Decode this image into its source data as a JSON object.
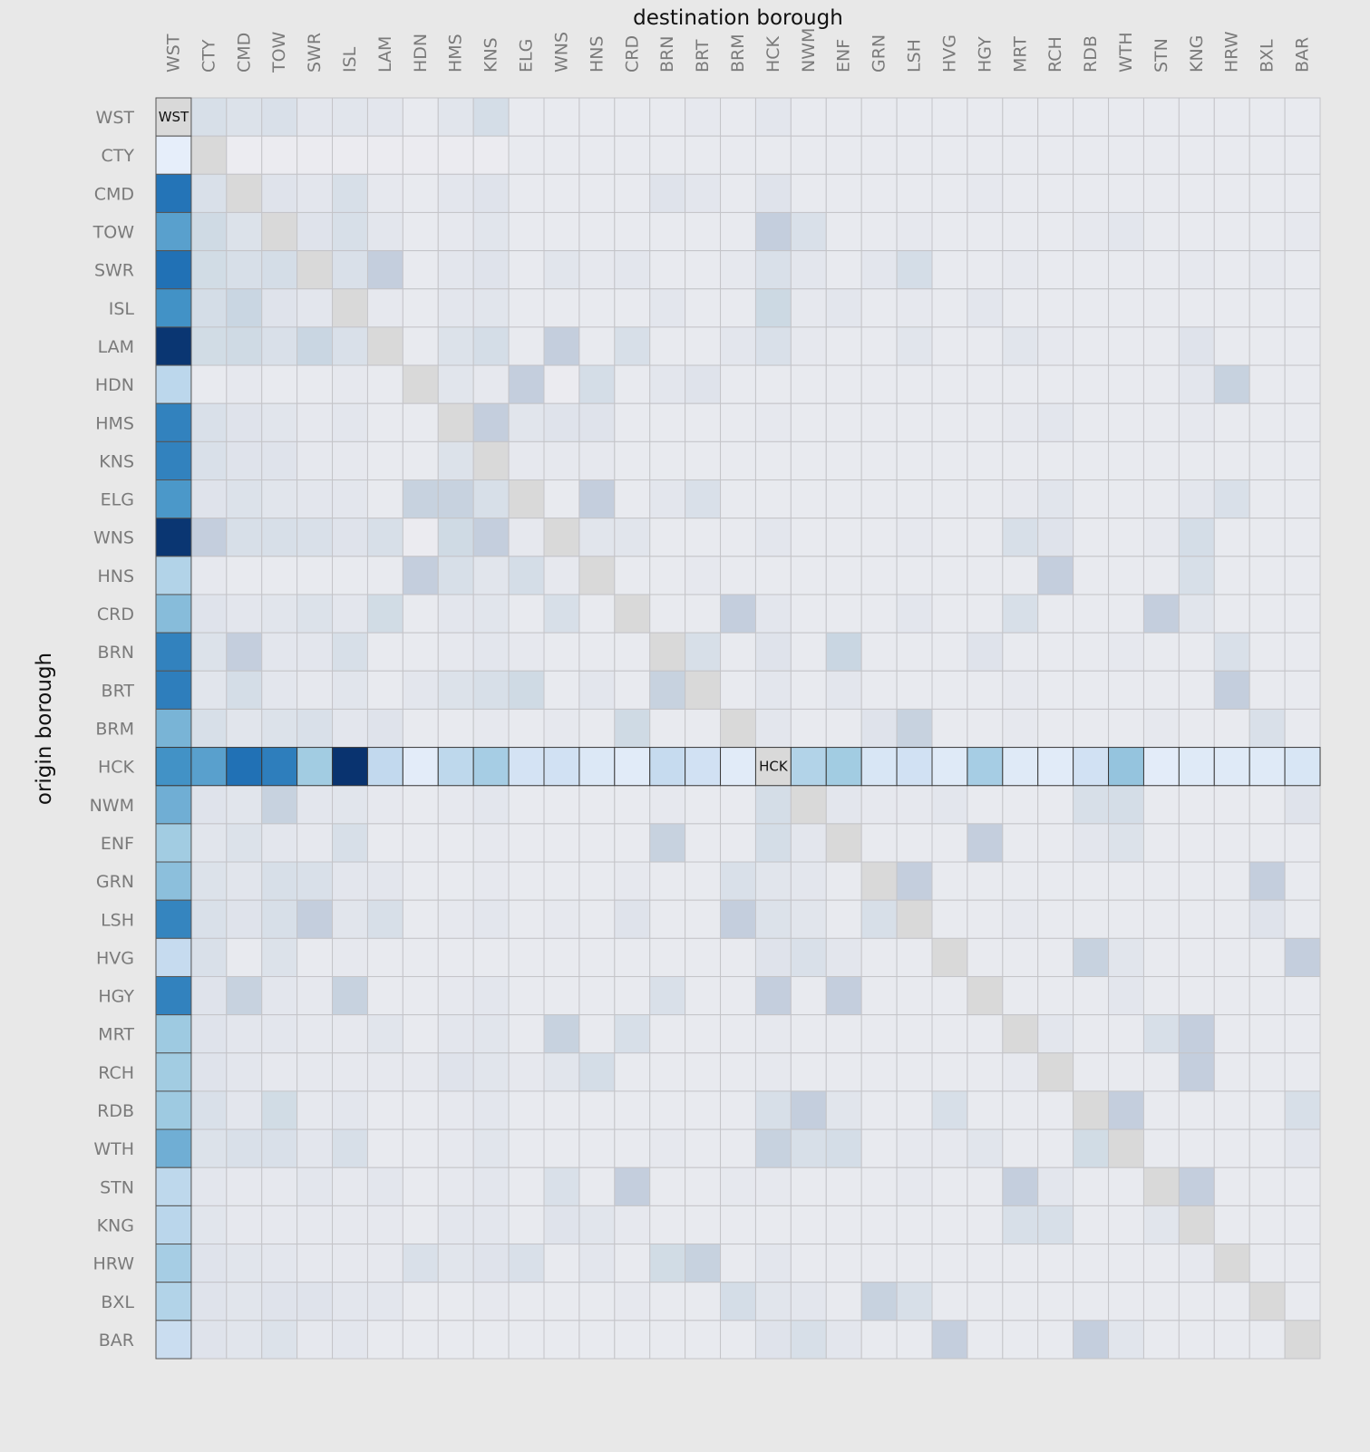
{
  "chart_data": {
    "type": "heatmap",
    "title": "",
    "xlabel": "destination borough",
    "ylabel": "origin borough",
    "x_categories": [
      "WST",
      "CTY",
      "CMD",
      "TOW",
      "SWR",
      "ISL",
      "LAM",
      "HDN",
      "HMS",
      "KNS",
      "ELG",
      "WNS",
      "HNS",
      "CRD",
      "BRN",
      "BRT",
      "BRM",
      "HCK",
      "NWM",
      "ENF",
      "GRN",
      "LSH",
      "HVG",
      "HGY",
      "MRT",
      "RCH",
      "RDB",
      "WTH",
      "STN",
      "KNG",
      "HRW",
      "BXL",
      "BAR"
    ],
    "y_categories": [
      "WST",
      "CTY",
      "CMD",
      "TOW",
      "SWR",
      "ISL",
      "LAM",
      "HDN",
      "HMS",
      "KNS",
      "ELG",
      "WNS",
      "HNS",
      "CRD",
      "BRN",
      "BRT",
      "BRM",
      "HCK",
      "NWM",
      "ENF",
      "GRN",
      "LSH",
      "HVG",
      "HGY",
      "MRT",
      "RCH",
      "RDB",
      "WTH",
      "STN",
      "KNG",
      "HRW",
      "BXL",
      "BAR"
    ],
    "scales": {
      "highlight": {
        "stops": [
          "#eaf0fb",
          "#c6dbef",
          "#9ecae1",
          "#4292c6",
          "#2171b5",
          "#08306b"
        ]
      },
      "background": {
        "stops": [
          "#ededf1",
          "#dde2ea",
          "#cbd8e3",
          "#b9bfd4"
        ]
      }
    },
    "highlighted_rows": [
      "HCK"
    ],
    "highlighted_columns": [
      "WST"
    ],
    "diagonal_color": "#d9d9d9",
    "grid": true,
    "legend": "none",
    "highlight_series": [
      {
        "name": "WST",
        "orientation": "column",
        "values": [
          null,
          0.02,
          0.78,
          0.55,
          0.8,
          0.6,
          0.98,
          0.25,
          0.7,
          0.7,
          0.58,
          0.98,
          0.3,
          0.45,
          0.7,
          0.72,
          0.48,
          0.6,
          0.5,
          0.38,
          0.44,
          0.68,
          0.2,
          0.7,
          0.4,
          0.38,
          0.4,
          0.5,
          0.24,
          0.26,
          0.36,
          0.3,
          0.18
        ]
      },
      {
        "name": "HCK",
        "orientation": "row",
        "values": [
          0.6,
          0.55,
          0.8,
          0.72,
          0.38,
          0.99,
          0.22,
          0.04,
          0.24,
          0.36,
          0.12,
          0.14,
          0.08,
          0.05,
          0.2,
          0.14,
          0.05,
          null,
          0.3,
          0.38,
          0.1,
          0.14,
          0.06,
          0.36,
          0.06,
          0.05,
          0.14,
          0.42,
          0.04,
          0.06,
          0.06,
          0.06,
          0.1
        ]
      }
    ],
    "background_rows": [
      [
        null,
        0.45,
        0.35,
        0.4,
        0.2,
        0.25,
        0.2,
        0.1,
        0.25,
        0.5,
        0.1,
        0.1,
        0.1,
        0.1,
        0.1,
        0.15,
        0.1,
        0.2,
        0.1,
        0.1,
        0.1,
        0.1,
        0.1,
        0.1,
        0.1,
        0.1,
        0.1,
        0.1,
        0.1,
        0.1,
        0.1,
        0.1,
        0.1
      ],
      [
        0.02,
        0.05,
        0.02,
        0.05,
        0.05,
        0.05,
        0.05,
        0.05,
        0.05,
        0.05,
        0.1,
        0.1,
        0.1,
        0.1,
        0.1,
        0.1,
        0.1,
        0.1,
        0.1,
        0.1,
        0.1,
        0.1,
        0.1,
        0.1,
        0.1,
        0.1,
        0.1,
        0.1,
        0.1,
        0.1,
        0.1,
        0.1,
        0.1
      ],
      [
        0.78,
        0.4,
        0.0,
        0.3,
        0.2,
        0.45,
        0.15,
        0.1,
        0.2,
        0.3,
        0.1,
        0.1,
        0.1,
        0.1,
        0.3,
        0.2,
        0.1,
        0.3,
        0.1,
        0.1,
        0.1,
        0.1,
        0.1,
        0.15,
        0.1,
        0.1,
        0.1,
        0.1,
        0.1,
        0.1,
        0.1,
        0.1,
        0.1
      ],
      [
        0.55,
        0.6,
        0.35,
        0.0,
        0.3,
        0.45,
        0.2,
        0.1,
        0.15,
        0.25,
        0.1,
        0.1,
        0.1,
        0.1,
        0.1,
        0.1,
        0.1,
        0.8,
        0.4,
        0.1,
        0.1,
        0.15,
        0.1,
        0.1,
        0.1,
        0.1,
        0.15,
        0.2,
        0.1,
        0.1,
        0.1,
        0.1,
        0.15
      ],
      [
        0.8,
        0.55,
        0.45,
        0.5,
        0.0,
        0.4,
        0.8,
        0.1,
        0.2,
        0.3,
        0.1,
        0.25,
        0.15,
        0.2,
        0.1,
        0.1,
        0.15,
        0.4,
        0.2,
        0.1,
        0.2,
        0.5,
        0.1,
        0.1,
        0.15,
        0.1,
        0.1,
        0.1,
        0.1,
        0.15,
        0.1,
        0.15,
        0.1
      ],
      [
        0.6,
        0.5,
        0.7,
        0.3,
        0.2,
        0.0,
        0.15,
        0.1,
        0.2,
        0.25,
        0.1,
        0.1,
        0.1,
        0.1,
        0.2,
        0.1,
        0.1,
        0.65,
        0.15,
        0.2,
        0.1,
        0.15,
        0.1,
        0.2,
        0.1,
        0.1,
        0.1,
        0.1,
        0.1,
        0.1,
        0.1,
        0.1,
        0.1
      ],
      [
        0.98,
        0.55,
        0.6,
        0.4,
        0.7,
        0.4,
        0.0,
        0.1,
        0.35,
        0.5,
        0.1,
        0.8,
        0.1,
        0.45,
        0.1,
        0.1,
        0.2,
        0.4,
        0.15,
        0.1,
        0.1,
        0.25,
        0.1,
        0.1,
        0.25,
        0.15,
        0.1,
        0.1,
        0.1,
        0.3,
        0.1,
        0.1,
        0.1
      ],
      [
        0.25,
        0.1,
        0.15,
        0.1,
        0.1,
        0.15,
        0.1,
        0.0,
        0.25,
        0.15,
        0.8,
        0.05,
        0.5,
        0.1,
        0.2,
        0.3,
        0.1,
        0.1,
        0.1,
        0.1,
        0.1,
        0.1,
        0.1,
        0.1,
        0.1,
        0.1,
        0.1,
        0.1,
        0.1,
        0.2,
        0.75,
        0.1,
        0.1
      ],
      [
        0.7,
        0.4,
        0.3,
        0.25,
        0.15,
        0.2,
        0.1,
        0.1,
        0.0,
        0.8,
        0.25,
        0.3,
        0.3,
        0.1,
        0.1,
        0.1,
        0.1,
        0.15,
        0.1,
        0.1,
        0.1,
        0.1,
        0.1,
        0.1,
        0.15,
        0.2,
        0.1,
        0.1,
        0.1,
        0.15,
        0.1,
        0.1,
        0.1
      ],
      [
        0.7,
        0.4,
        0.3,
        0.3,
        0.15,
        0.15,
        0.1,
        0.1,
        0.35,
        0.0,
        0.15,
        0.15,
        0.15,
        0.1,
        0.1,
        0.1,
        0.1,
        0.1,
        0.1,
        0.1,
        0.1,
        0.1,
        0.1,
        0.1,
        0.1,
        0.1,
        0.1,
        0.1,
        0.1,
        0.1,
        0.1,
        0.1,
        0.1
      ],
      [
        0.58,
        0.3,
        0.35,
        0.25,
        0.2,
        0.2,
        0.1,
        0.75,
        0.75,
        0.45,
        0.0,
        0.1,
        0.8,
        0.1,
        0.2,
        0.4,
        0.1,
        0.1,
        0.1,
        0.1,
        0.1,
        0.1,
        0.1,
        0.1,
        0.15,
        0.25,
        0.1,
        0.1,
        0.1,
        0.2,
        0.4,
        0.1,
        0.1
      ],
      [
        0.98,
        0.8,
        0.45,
        0.45,
        0.4,
        0.3,
        0.45,
        0.05,
        0.6,
        0.8,
        0.15,
        0.0,
        0.25,
        0.25,
        0.1,
        0.1,
        0.1,
        0.2,
        0.1,
        0.1,
        0.1,
        0.15,
        0.1,
        0.1,
        0.45,
        0.3,
        0.1,
        0.1,
        0.15,
        0.5,
        0.1,
        0.1,
        0.1
      ],
      [
        0.3,
        0.15,
        0.1,
        0.1,
        0.1,
        0.1,
        0.1,
        0.8,
        0.45,
        0.25,
        0.5,
        0.15,
        0.0,
        0.1,
        0.1,
        0.15,
        0.1,
        0.1,
        0.1,
        0.1,
        0.1,
        0.1,
        0.1,
        0.1,
        0.1,
        0.8,
        0.1,
        0.1,
        0.1,
        0.45,
        0.1,
        0.1,
        0.1
      ],
      [
        0.45,
        0.3,
        0.2,
        0.25,
        0.35,
        0.2,
        0.55,
        0.1,
        0.2,
        0.25,
        0.1,
        0.45,
        0.1,
        0.0,
        0.1,
        0.1,
        0.8,
        0.2,
        0.1,
        0.1,
        0.1,
        0.2,
        0.1,
        0.1,
        0.45,
        0.1,
        0.1,
        0.1,
        0.8,
        0.25,
        0.1,
        0.1,
        0.1
      ],
      [
        0.7,
        0.35,
        0.8,
        0.2,
        0.2,
        0.45,
        0.1,
        0.1,
        0.15,
        0.2,
        0.15,
        0.1,
        0.1,
        0.1,
        0.0,
        0.45,
        0.1,
        0.3,
        0.1,
        0.7,
        0.1,
        0.1,
        0.1,
        0.3,
        0.1,
        0.1,
        0.1,
        0.15,
        0.1,
        0.1,
        0.4,
        0.1,
        0.1
      ],
      [
        0.72,
        0.25,
        0.5,
        0.2,
        0.15,
        0.25,
        0.1,
        0.2,
        0.35,
        0.45,
        0.6,
        0.1,
        0.2,
        0.1,
        0.75,
        0.0,
        0.1,
        0.2,
        0.1,
        0.2,
        0.1,
        0.1,
        0.1,
        0.1,
        0.15,
        0.1,
        0.1,
        0.1,
        0.1,
        0.1,
        0.8,
        0.1,
        0.1
      ],
      [
        0.48,
        0.45,
        0.25,
        0.35,
        0.4,
        0.2,
        0.3,
        0.1,
        0.1,
        0.15,
        0.1,
        0.15,
        0.1,
        0.6,
        0.1,
        0.1,
        0.0,
        0.2,
        0.1,
        0.1,
        0.3,
        0.75,
        0.1,
        0.1,
        0.15,
        0.1,
        0.1,
        0.1,
        0.15,
        0.1,
        0.1,
        0.4,
        0.1
      ],
      [
        null,
        null,
        null,
        null,
        null,
        null,
        null,
        null,
        null,
        null,
        null,
        null,
        null,
        null,
        null,
        null,
        null,
        null,
        null,
        null,
        null,
        null,
        null,
        null,
        null,
        null,
        null,
        null,
        null,
        null,
        null,
        null,
        null
      ],
      [
        0.5,
        0.3,
        0.25,
        0.75,
        0.2,
        0.25,
        0.15,
        0.1,
        0.15,
        0.2,
        0.1,
        0.1,
        0.1,
        0.1,
        0.15,
        0.1,
        0.1,
        0.5,
        0.0,
        0.2,
        0.15,
        0.15,
        0.2,
        0.1,
        0.1,
        0.1,
        0.45,
        0.5,
        0.1,
        0.1,
        0.1,
        0.1,
        0.3
      ],
      [
        0.38,
        0.25,
        0.35,
        0.2,
        0.15,
        0.45,
        0.1,
        0.1,
        0.1,
        0.15,
        0.1,
        0.1,
        0.1,
        0.1,
        0.75,
        0.1,
        0.1,
        0.5,
        0.2,
        0.0,
        0.1,
        0.1,
        0.1,
        0.8,
        0.1,
        0.1,
        0.2,
        0.35,
        0.1,
        0.1,
        0.1,
        0.1,
        0.1
      ],
      [
        0.44,
        0.35,
        0.25,
        0.45,
        0.4,
        0.2,
        0.2,
        0.1,
        0.1,
        0.15,
        0.1,
        0.1,
        0.1,
        0.15,
        0.1,
        0.1,
        0.4,
        0.25,
        0.2,
        0.1,
        0.0,
        0.8,
        0.1,
        0.1,
        0.1,
        0.1,
        0.1,
        0.1,
        0.1,
        0.1,
        0.1,
        0.8,
        0.1
      ],
      [
        0.68,
        0.4,
        0.3,
        0.45,
        0.8,
        0.25,
        0.45,
        0.1,
        0.15,
        0.2,
        0.1,
        0.15,
        0.1,
        0.3,
        0.1,
        0.1,
        0.8,
        0.35,
        0.25,
        0.1,
        0.45,
        0.0,
        0.1,
        0.1,
        0.15,
        0.1,
        0.1,
        0.1,
        0.1,
        0.1,
        0.1,
        0.3,
        0.1
      ],
      [
        0.2,
        0.4,
        0.1,
        0.35,
        0.1,
        0.15,
        0.1,
        0.1,
        0.1,
        0.1,
        0.1,
        0.1,
        0.1,
        0.1,
        0.1,
        0.1,
        0.1,
        0.3,
        0.4,
        0.2,
        0.1,
        0.1,
        0.0,
        0.1,
        0.1,
        0.1,
        0.75,
        0.25,
        0.1,
        0.1,
        0.1,
        0.1,
        0.8
      ],
      [
        0.7,
        0.3,
        0.75,
        0.2,
        0.15,
        0.75,
        0.1,
        0.1,
        0.15,
        0.2,
        0.1,
        0.1,
        0.1,
        0.1,
        0.4,
        0.1,
        0.1,
        0.8,
        0.1,
        0.8,
        0.1,
        0.1,
        0.1,
        0.0,
        0.1,
        0.1,
        0.1,
        0.2,
        0.1,
        0.1,
        0.1,
        0.1,
        0.1
      ],
      [
        0.4,
        0.3,
        0.2,
        0.2,
        0.15,
        0.15,
        0.25,
        0.1,
        0.2,
        0.25,
        0.1,
        0.75,
        0.1,
        0.45,
        0.1,
        0.1,
        0.1,
        0.15,
        0.1,
        0.1,
        0.1,
        0.1,
        0.1,
        0.1,
        0.0,
        0.2,
        0.1,
        0.1,
        0.45,
        0.8,
        0.1,
        0.1,
        0.1
      ],
      [
        0.38,
        0.3,
        0.2,
        0.15,
        0.15,
        0.15,
        0.15,
        0.15,
        0.3,
        0.25,
        0.15,
        0.25,
        0.5,
        0.1,
        0.1,
        0.1,
        0.1,
        0.15,
        0.1,
        0.1,
        0.1,
        0.1,
        0.1,
        0.1,
        0.15,
        0.0,
        0.1,
        0.1,
        0.1,
        0.8,
        0.1,
        0.1,
        0.1
      ],
      [
        0.4,
        0.4,
        0.2,
        0.55,
        0.15,
        0.2,
        0.1,
        0.1,
        0.15,
        0.2,
        0.1,
        0.1,
        0.1,
        0.1,
        0.1,
        0.1,
        0.1,
        0.45,
        0.8,
        0.25,
        0.1,
        0.1,
        0.45,
        0.1,
        0.1,
        0.1,
        0.0,
        0.8,
        0.1,
        0.1,
        0.1,
        0.1,
        0.45
      ],
      [
        0.5,
        0.35,
        0.4,
        0.4,
        0.2,
        0.45,
        0.1,
        0.1,
        0.15,
        0.25,
        0.1,
        0.1,
        0.1,
        0.1,
        0.15,
        0.1,
        0.1,
        0.75,
        0.45,
        0.5,
        0.1,
        0.15,
        0.15,
        0.25,
        0.1,
        0.1,
        0.55,
        0.0,
        0.1,
        0.1,
        0.1,
        0.1,
        0.2
      ],
      [
        0.24,
        0.2,
        0.15,
        0.15,
        0.2,
        0.15,
        0.2,
        0.1,
        0.15,
        0.2,
        0.1,
        0.4,
        0.1,
        0.8,
        0.1,
        0.1,
        0.15,
        0.15,
        0.1,
        0.1,
        0.1,
        0.15,
        0.1,
        0.1,
        0.8,
        0.2,
        0.1,
        0.1,
        0.0,
        0.8,
        0.1,
        0.1,
        0.1
      ],
      [
        0.26,
        0.25,
        0.15,
        0.15,
        0.15,
        0.15,
        0.15,
        0.1,
        0.2,
        0.2,
        0.1,
        0.3,
        0.25,
        0.15,
        0.1,
        0.1,
        0.1,
        0.1,
        0.1,
        0.1,
        0.1,
        0.1,
        0.1,
        0.1,
        0.45,
        0.45,
        0.1,
        0.1,
        0.25,
        0.0,
        0.1,
        0.1,
        0.1
      ],
      [
        0.36,
        0.3,
        0.25,
        0.2,
        0.15,
        0.15,
        0.15,
        0.4,
        0.25,
        0.3,
        0.4,
        0.1,
        0.2,
        0.1,
        0.55,
        0.75,
        0.1,
        0.2,
        0.1,
        0.1,
        0.1,
        0.1,
        0.1,
        0.1,
        0.1,
        0.1,
        0.1,
        0.1,
        0.1,
        0.15,
        0.0,
        0.1,
        0.1
      ],
      [
        0.3,
        0.3,
        0.25,
        0.3,
        0.3,
        0.2,
        0.2,
        0.1,
        0.1,
        0.15,
        0.1,
        0.1,
        0.1,
        0.15,
        0.1,
        0.1,
        0.5,
        0.25,
        0.2,
        0.1,
        0.75,
        0.45,
        0.1,
        0.1,
        0.1,
        0.1,
        0.1,
        0.1,
        0.1,
        0.1,
        0.1,
        0.0,
        0.1
      ],
      [
        0.18,
        0.3,
        0.25,
        0.35,
        0.15,
        0.2,
        0.1,
        0.1,
        0.1,
        0.1,
        0.1,
        0.1,
        0.1,
        0.1,
        0.1,
        0.1,
        0.1,
        0.3,
        0.45,
        0.2,
        0.1,
        0.1,
        0.8,
        0.1,
        0.1,
        0.1,
        0.8,
        0.25,
        0.1,
        0.1,
        0.1,
        0.1,
        0.0
      ]
    ]
  }
}
